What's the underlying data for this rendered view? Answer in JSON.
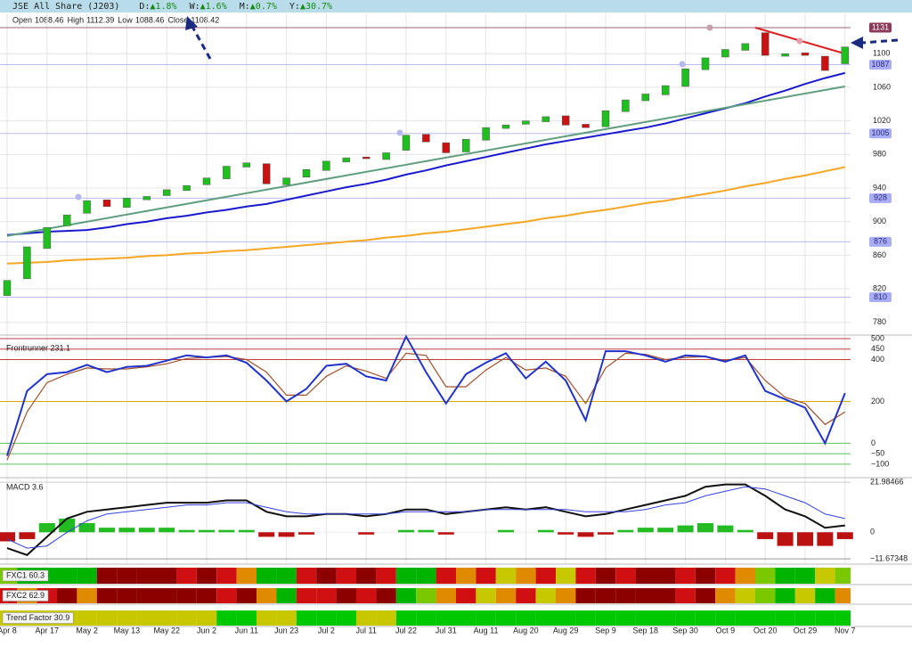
{
  "header": {
    "title": "JSE All Share (J203)",
    "changes": [
      {
        "label": "D:",
        "value": "▲1.8%"
      },
      {
        "label": "W:",
        "value": "▲1.6%"
      },
      {
        "label": "M:",
        "value": "▲0.7%"
      },
      {
        "label": "Y:",
        "value": "▲30.7%"
      }
    ],
    "ohlc": [
      {
        "label": "Open",
        "value": 1088.46
      },
      {
        "label": "High",
        "value": 1112.39
      },
      {
        "label": "Low",
        "value": 1088.46
      },
      {
        "label": "Close",
        "value": 1108.42
      }
    ]
  },
  "chart_data": [
    {
      "type": "candlestick",
      "categories": [
        "Apr 8",
        null,
        "Apr 17",
        null,
        "May 2",
        null,
        "May 13",
        null,
        "May 22",
        null,
        "Jun 2",
        null,
        "Jun 11",
        null,
        "Jun 23",
        null,
        "Jul 2",
        null,
        "Jul 11",
        null,
        "Jul 22",
        null,
        "Jul 31",
        null,
        "Aug 11",
        null,
        "Aug 20",
        null,
        "Aug 29",
        null,
        "Sep 9",
        null,
        "Sep 18",
        null,
        "Sep 30",
        null,
        "Oct 9",
        null,
        "Oct 20",
        null,
        "Oct 29",
        null,
        "Nov 7"
      ],
      "open": [
        812,
        832,
        868,
        895,
        910,
        926,
        917,
        926,
        931,
        937,
        944,
        951,
        965,
        969,
        944,
        953,
        961,
        971,
        977,
        974,
        985,
        1004,
        994,
        983,
        997,
        1011,
        1016,
        1019,
        1026,
        1016,
        1013,
        1031,
        1044,
        1051,
        1061,
        1081,
        1096,
        1104,
        1125,
        1097,
        1101,
        1097,
        1088
      ],
      "close": [
        830,
        870,
        893,
        908,
        925,
        918,
        928,
        930,
        938,
        943,
        952,
        966,
        970,
        945,
        952,
        962,
        972,
        976,
        975,
        982,
        1003,
        995,
        982,
        998,
        1012,
        1015,
        1020,
        1025,
        1015,
        1012,
        1032,
        1045,
        1052,
        1062,
        1082,
        1095,
        1105,
        1112,
        1098,
        1100,
        1098,
        1080,
        1108
      ],
      "up_color": "#1fbf1f",
      "down_color": "#cc1111",
      "series": [
        {
          "color": "#1a1acd",
          "values": [
            884,
            886,
            888,
            889,
            890,
            893,
            897,
            900,
            904,
            907,
            911,
            914,
            918,
            921,
            926,
            931,
            936,
            941,
            945,
            950,
            956,
            961,
            967,
            972,
            977,
            982,
            987,
            992,
            996,
            1000,
            1004,
            1008,
            1012,
            1017,
            1023,
            1029,
            1035,
            1041,
            1049,
            1056,
            1064,
            1071,
            1077
          ]
        },
        {
          "color": "#f5a623",
          "values": [
            850,
            851,
            852,
            854,
            855,
            856,
            857,
            859,
            860,
            862,
            863,
            865,
            866,
            868,
            870,
            872,
            874,
            876,
            878,
            881,
            883,
            886,
            888,
            891,
            894,
            897,
            900,
            904,
            907,
            911,
            914,
            918,
            922,
            925,
            929,
            933,
            937,
            942,
            946,
            951,
            955,
            960,
            965
          ]
        }
      ],
      "trendlines": [
        {
          "color": "#5f9e7f",
          "x": [
            0,
            42
          ],
          "values": [
            883,
            1061
          ]
        },
        {
          "color": "#dd2222",
          "x": [
            37.5,
            42
          ],
          "values": [
            1131,
            1100
          ]
        }
      ],
      "levels": [
        {
          "value": 1131,
          "color": "#8b3a5a"
        },
        {
          "value": 1087,
          "color": "#a9adf5"
        },
        {
          "value": 1005,
          "color": "#a9adf5"
        },
        {
          "value": 928,
          "color": "#a9adf5"
        },
        {
          "value": 876,
          "color": "#a9adf5"
        },
        {
          "value": 810,
          "color": "#a9adf5"
        }
      ],
      "ylim": [
        766,
        1148
      ],
      "yticks": [
        780,
        820,
        860,
        900,
        940,
        980,
        1020,
        1060,
        1100
      ],
      "grid": true
    },
    {
      "type": "line",
      "title": "Frontrunner 231.1",
      "series": [
        {
          "color": "#2233cc",
          "values": [
            -60,
            250,
            330,
            340,
            375,
            340,
            365,
            370,
            395,
            420,
            410,
            420,
            385,
            300,
            200,
            260,
            370,
            380,
            320,
            300,
            510,
            340,
            190,
            330,
            385,
            430,
            310,
            390,
            300,
            110,
            440,
            440,
            420,
            390,
            420,
            415,
            390,
            420,
            250,
            210,
            170,
            0,
            240
          ]
        },
        {
          "color": "#a0522d",
          "values": [
            -80,
            150,
            290,
            330,
            360,
            355,
            355,
            365,
            380,
            405,
            410,
            415,
            400,
            340,
            230,
            230,
            320,
            370,
            345,
            310,
            430,
            420,
            270,
            270,
            350,
            410,
            350,
            360,
            320,
            190,
            360,
            430,
            425,
            400,
            410,
            415,
            395,
            410,
            300,
            220,
            190,
            90,
            150
          ]
        }
      ],
      "ylim": [
        -160,
        517
      ],
      "yticks": [
        {
          "value": -100,
          "label": "−100"
        },
        {
          "value": -50,
          "label": "−50"
        },
        0,
        200,
        400,
        450,
        500
      ],
      "grid_colors": [
        "#5cc05c",
        "#5cc05c",
        "#5cc05c",
        "#d4b000",
        "#c04040",
        "#c04040",
        "#c04040"
      ]
    },
    {
      "type": "macd",
      "title": "MACD 3.6",
      "series": [
        {
          "color": "#111111",
          "values": [
            -7,
            -10,
            -2,
            6,
            9,
            10,
            11,
            12,
            13,
            13,
            13,
            14,
            14,
            9,
            7,
            7,
            8,
            8,
            7,
            8,
            10,
            10,
            8,
            9,
            10,
            11,
            10,
            11,
            9,
            7,
            8,
            10,
            12,
            14,
            16,
            20,
            21,
            21,
            16,
            10,
            7,
            2,
            3
          ]
        },
        {
          "color": "#3344dd",
          "values": [
            -3,
            -7,
            -6,
            0,
            5,
            8,
            9,
            10,
            11,
            12,
            12,
            13,
            13,
            11,
            9,
            8,
            8,
            8,
            8,
            8,
            9,
            9,
            9,
            9,
            10,
            10,
            10,
            10,
            10,
            9,
            9,
            9,
            10,
            12,
            13,
            16,
            18,
            20,
            19,
            16,
            13,
            8,
            6
          ]
        }
      ],
      "histogram": {
        "up_color": "#22bb22",
        "down_color": "#bb1111",
        "values": [
          -4,
          -3,
          4,
          6,
          4,
          2,
          2,
          2,
          2,
          1,
          1,
          1,
          1,
          -2,
          -2,
          -1,
          0,
          0,
          -1,
          0,
          1,
          1,
          -1,
          0,
          0,
          1,
          0,
          1,
          -1,
          -2,
          -1,
          1,
          2,
          2,
          3,
          4,
          3,
          1,
          -3,
          -6,
          -6,
          -6,
          -3
        ]
      },
      "ylim": [
        -13.6,
        23.2
      ],
      "yticks": [
        {
          "value": -11.67348,
          "label": "−11.67348"
        },
        0,
        21.98466
      ],
      "grid_colors": [
        "#999999",
        "#eeeeee",
        "#cccccc"
      ]
    },
    {
      "type": "heatmap",
      "title": "FXC1 60.3",
      "colors": [
        "#7ac800",
        "#00b400",
        "#00b400",
        "#00b400",
        "#00b400",
        "#8c0000",
        "#8c0000",
        "#8c0000",
        "#8c0000",
        "#d01010",
        "#8c0000",
        "#d01010",
        "#e08a00",
        "#00b400",
        "#00b400",
        "#d01010",
        "#8c0000",
        "#d01010",
        "#8c0000",
        "#d01010",
        "#00b400",
        "#00b400",
        "#d01010",
        "#e08a00",
        "#d01010",
        "#c8c800",
        "#e08a00",
        "#d01010",
        "#c8c800",
        "#d01010",
        "#8c0000",
        "#d01010",
        "#8c0000",
        "#8c0000",
        "#d01010",
        "#8c0000",
        "#d01010",
        "#e08a00",
        "#7ac800",
        "#00b400",
        "#00b400",
        "#c8c800",
        "#7ac800"
      ]
    },
    {
      "type": "heatmap",
      "title": "FXC2 62.9",
      "colors": [
        "#d01010",
        "#e08a00",
        "#d01010",
        "#8c0000",
        "#e08a00",
        "#8c0000",
        "#8c0000",
        "#8c0000",
        "#8c0000",
        "#8c0000",
        "#8c0000",
        "#d01010",
        "#8c0000",
        "#e08a00",
        "#00b400",
        "#d01010",
        "#d01010",
        "#8c0000",
        "#d01010",
        "#8c0000",
        "#00b400",
        "#7ac800",
        "#e08a00",
        "#d01010",
        "#c8c800",
        "#e08a00",
        "#d01010",
        "#c8c800",
        "#e08a00",
        "#8c0000",
        "#8c0000",
        "#8c0000",
        "#8c0000",
        "#8c0000",
        "#d01010",
        "#8c0000",
        "#e08a00",
        "#c8c800",
        "#7ac800",
        "#00b400",
        "#c8c800",
        "#00b400",
        "#e08a00"
      ]
    },
    {
      "type": "heatmap",
      "title": "Trend Factor 30.9",
      "colors": [
        "#c8c800",
        "#c8c800",
        "#c8c800",
        "#c8c800",
        "#c8c800",
        "#c8c800",
        "#c8c800",
        "#c8c800",
        "#c8c800",
        "#c8c800",
        "#c8c800",
        "#00c800",
        "#00c800",
        "#c8c800",
        "#c8c800",
        "#00c800",
        "#00c800",
        "#00c800",
        "#c8c800",
        "#c8c800",
        "#00c800",
        "#00c800",
        "#00c800",
        "#00c800",
        "#00c800",
        "#00c800",
        "#00c800",
        "#00c800",
        "#00c800",
        "#00c800",
        "#00c800",
        "#00c800",
        "#00c800",
        "#00c800",
        "#00c800",
        "#00c800",
        "#00c800",
        "#00c800",
        "#00c800",
        "#00c800",
        "#00c800",
        "#00c800",
        "#00c800"
      ]
    }
  ]
}
